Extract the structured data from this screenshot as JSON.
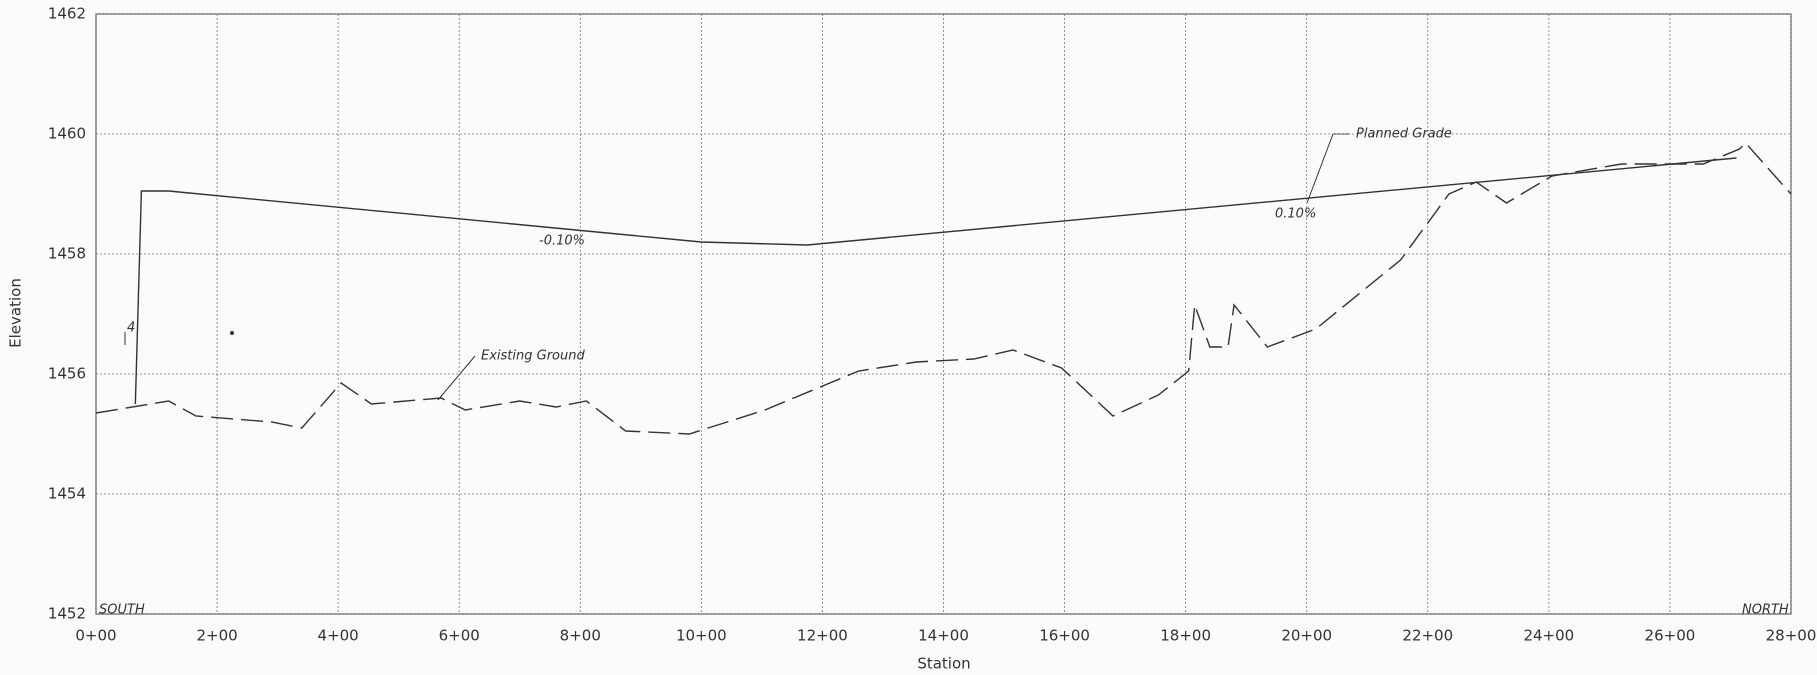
{
  "chart_data": {
    "type": "line",
    "x_label": "Station",
    "y_label": "Elevation",
    "xlim": [
      0,
      2800
    ],
    "xticks": [
      {
        "value": 0,
        "label": "0+00"
      },
      {
        "value": 200,
        "label": "2+00"
      },
      {
        "value": 400,
        "label": "4+00"
      },
      {
        "value": 600,
        "label": "6+00"
      },
      {
        "value": 800,
        "label": "8+00"
      },
      {
        "value": 1000,
        "label": "10+00"
      },
      {
        "value": 1200,
        "label": "12+00"
      },
      {
        "value": 1400,
        "label": "14+00"
      },
      {
        "value": 1600,
        "label": "16+00"
      },
      {
        "value": 1800,
        "label": "18+00"
      },
      {
        "value": 2000,
        "label": "20+00"
      },
      {
        "value": 2200,
        "label": "22+00"
      },
      {
        "value": 2400,
        "label": "24+00"
      },
      {
        "value": 2600,
        "label": "26+00"
      },
      {
        "value": 2800,
        "label": "28+00"
      }
    ],
    "ylim": [
      1452,
      1462
    ],
    "yticks": [
      1452,
      1454,
      1456,
      1458,
      1460,
      1462
    ],
    "grid": true,
    "series": [
      {
        "name": "Planned Grade",
        "color": "#333333",
        "dashed": false,
        "x": [
          65,
          75,
          120,
          1000,
          1175,
          2710
        ],
        "values": [
          1455.5,
          1459.05,
          1459.05,
          1458.2,
          1458.15,
          1459.6
        ]
      },
      {
        "name": "Existing Ground",
        "color": "#333333",
        "dashed": true,
        "x": [
          0,
          120,
          165,
          290,
          340,
          405,
          455,
          570,
          610,
          700,
          760,
          810,
          875,
          980,
          1105,
          1260,
          1355,
          1450,
          1515,
          1595,
          1680,
          1755,
          1805,
          1815,
          1840,
          1870,
          1880,
          1935,
          2015,
          2155,
          2235,
          2280,
          2330,
          2405,
          2520,
          2655,
          2715,
          2725,
          2800
        ],
        "values": [
          1455.35,
          1455.55,
          1455.3,
          1455.2,
          1455.1,
          1455.85,
          1455.5,
          1455.6,
          1455.4,
          1455.55,
          1455.45,
          1455.55,
          1455.05,
          1455,
          1455.4,
          1456.05,
          1456.2,
          1456.25,
          1456.4,
          1456.1,
          1455.3,
          1455.65,
          1456.05,
          1457.15,
          1456.45,
          1456.45,
          1457.15,
          1456.45,
          1456.75,
          1457.9,
          1459,
          1459.2,
          1458.85,
          1459.3,
          1459.5,
          1459.5,
          1459.75,
          1459.85,
          1459
        ]
      }
    ],
    "annotations": [
      "-0.10%",
      "0.10%",
      "SOUTH",
      "NORTH",
      "4"
    ]
  }
}
